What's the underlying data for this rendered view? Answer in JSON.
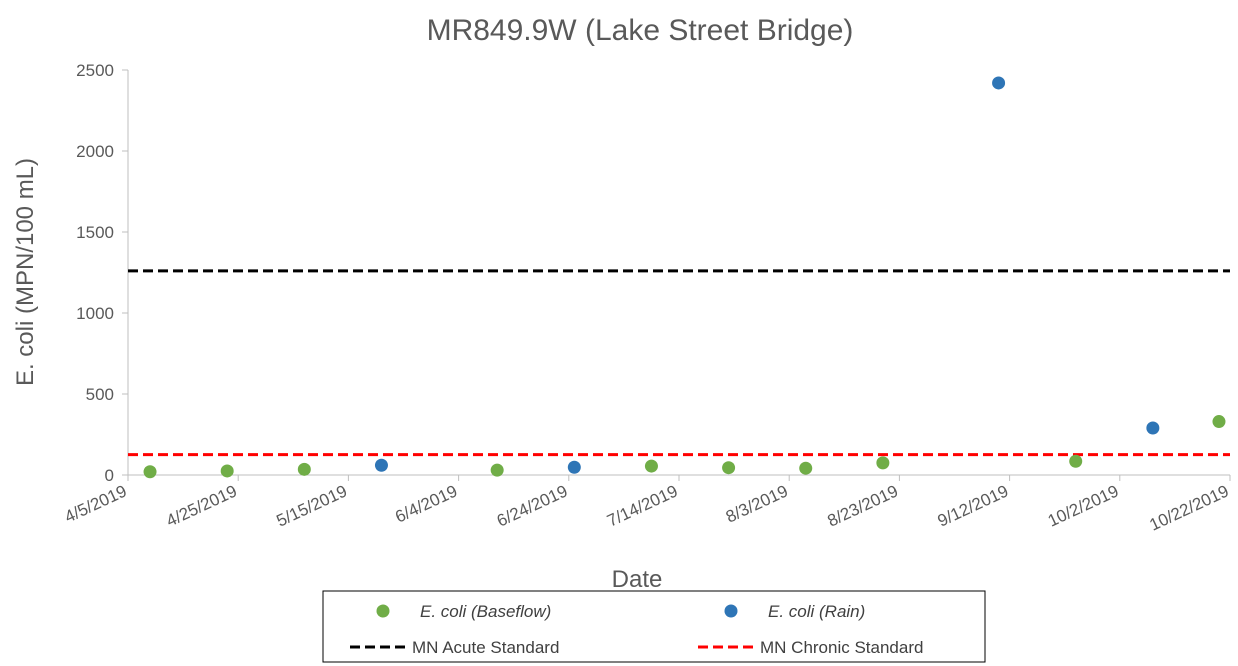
{
  "chart_data": {
    "type": "scatter",
    "title": "MR849.9W (Lake Street Bridge)",
    "x_label": "Date",
    "y_label": "E. coli (MPN/100 mL)",
    "xlim": [
      "4/5/2019",
      "10/22/2019"
    ],
    "xticks": [
      "4/5/2019",
      "4/25/2019",
      "5/15/2019",
      "6/4/2019",
      "6/24/2019",
      "7/14/2019",
      "8/3/2019",
      "8/23/2019",
      "9/12/2019",
      "10/2/2019",
      "10/22/2019"
    ],
    "ylim": [
      0,
      2500
    ],
    "yticks": [
      0,
      500,
      1000,
      1500,
      2000,
      2500
    ],
    "grid": false,
    "series": [
      {
        "name": "E. coli (Baseflow)",
        "color": "#70ad47",
        "x": [
          "4/9/2019",
          "4/23/2019",
          "5/7/2019",
          "6/11/2019",
          "7/9/2019",
          "7/23/2019",
          "8/6/2019",
          "8/20/2019",
          "9/24/2019",
          "10/20/2019"
        ],
        "values": [
          20,
          25,
          35,
          30,
          55,
          45,
          42,
          75,
          85,
          330
        ]
      },
      {
        "name": "E. coli (Rain)",
        "color": "#2e75b6",
        "x": [
          "5/21/2019",
          "6/25/2019",
          "9/10/2019",
          "10/8/2019"
        ],
        "values": [
          60,
          48,
          2420,
          290
        ]
      }
    ],
    "reference_lines": [
      {
        "name": "MN Acute Standard",
        "color": "#000000",
        "value": 1260
      },
      {
        "name": "MN Chronic Standard",
        "color": "#ff0000",
        "value": 126
      }
    ]
  }
}
